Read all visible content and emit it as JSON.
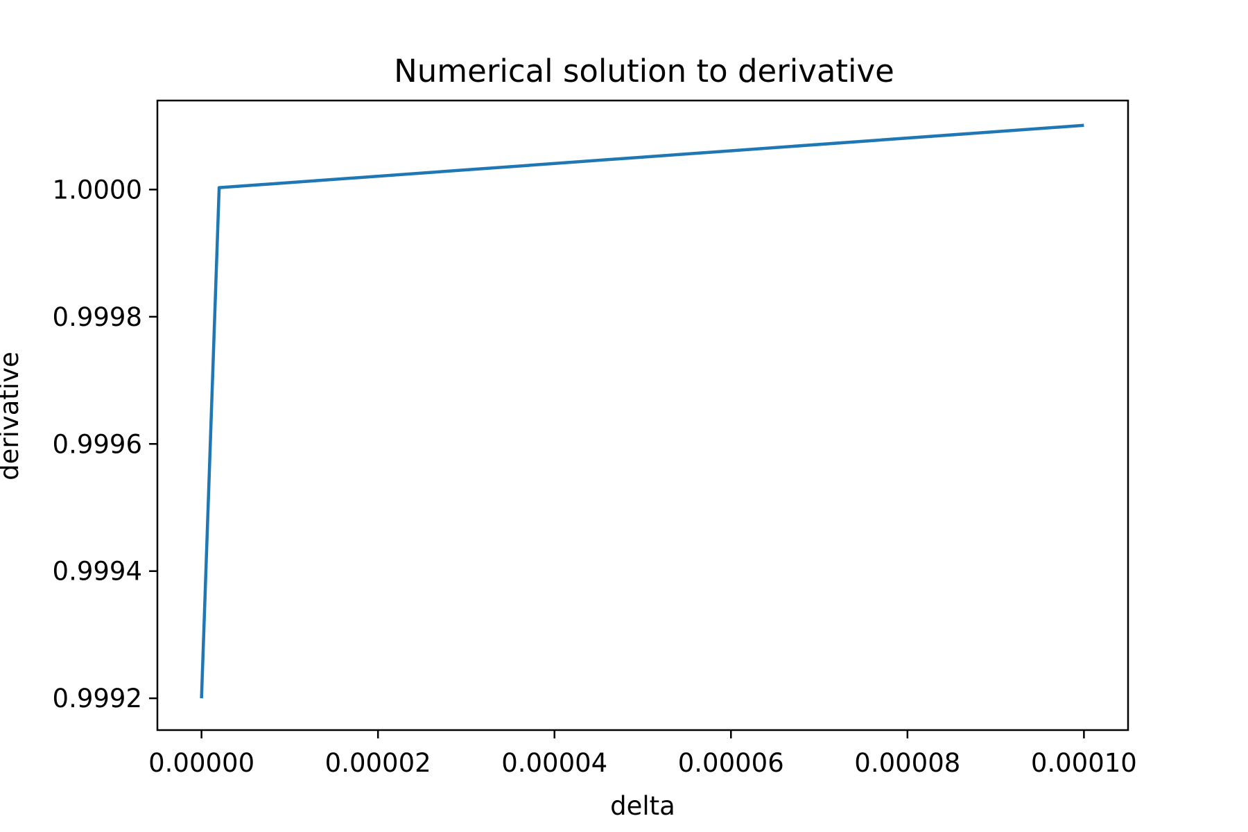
{
  "chart_data": {
    "type": "line",
    "title": "Numerical solution to derivative",
    "xlabel": "delta",
    "ylabel": "derivative",
    "xlim": [
      -5e-06,
      0.000105
    ],
    "ylim": [
      0.99915,
      1.00014
    ],
    "x_ticks": [
      0.0,
      2e-05,
      4e-05,
      6e-05,
      8e-05,
      0.0001
    ],
    "x_tick_labels": [
      "0.00000",
      "0.00002",
      "0.00004",
      "0.00006",
      "0.00008",
      "0.00010"
    ],
    "y_ticks": [
      0.9992,
      0.9994,
      0.9996,
      0.9998,
      1.0
    ],
    "y_tick_labels": [
      "0.9992",
      "0.9994",
      "0.9996",
      "0.9998",
      "1.0000"
    ],
    "grid": false,
    "series": [
      {
        "color": "#1f77b4",
        "x": [
          0.0,
          2e-06,
          0.0001
        ],
        "y": [
          0.9992,
          1.000003,
          1.000101
        ]
      }
    ]
  }
}
